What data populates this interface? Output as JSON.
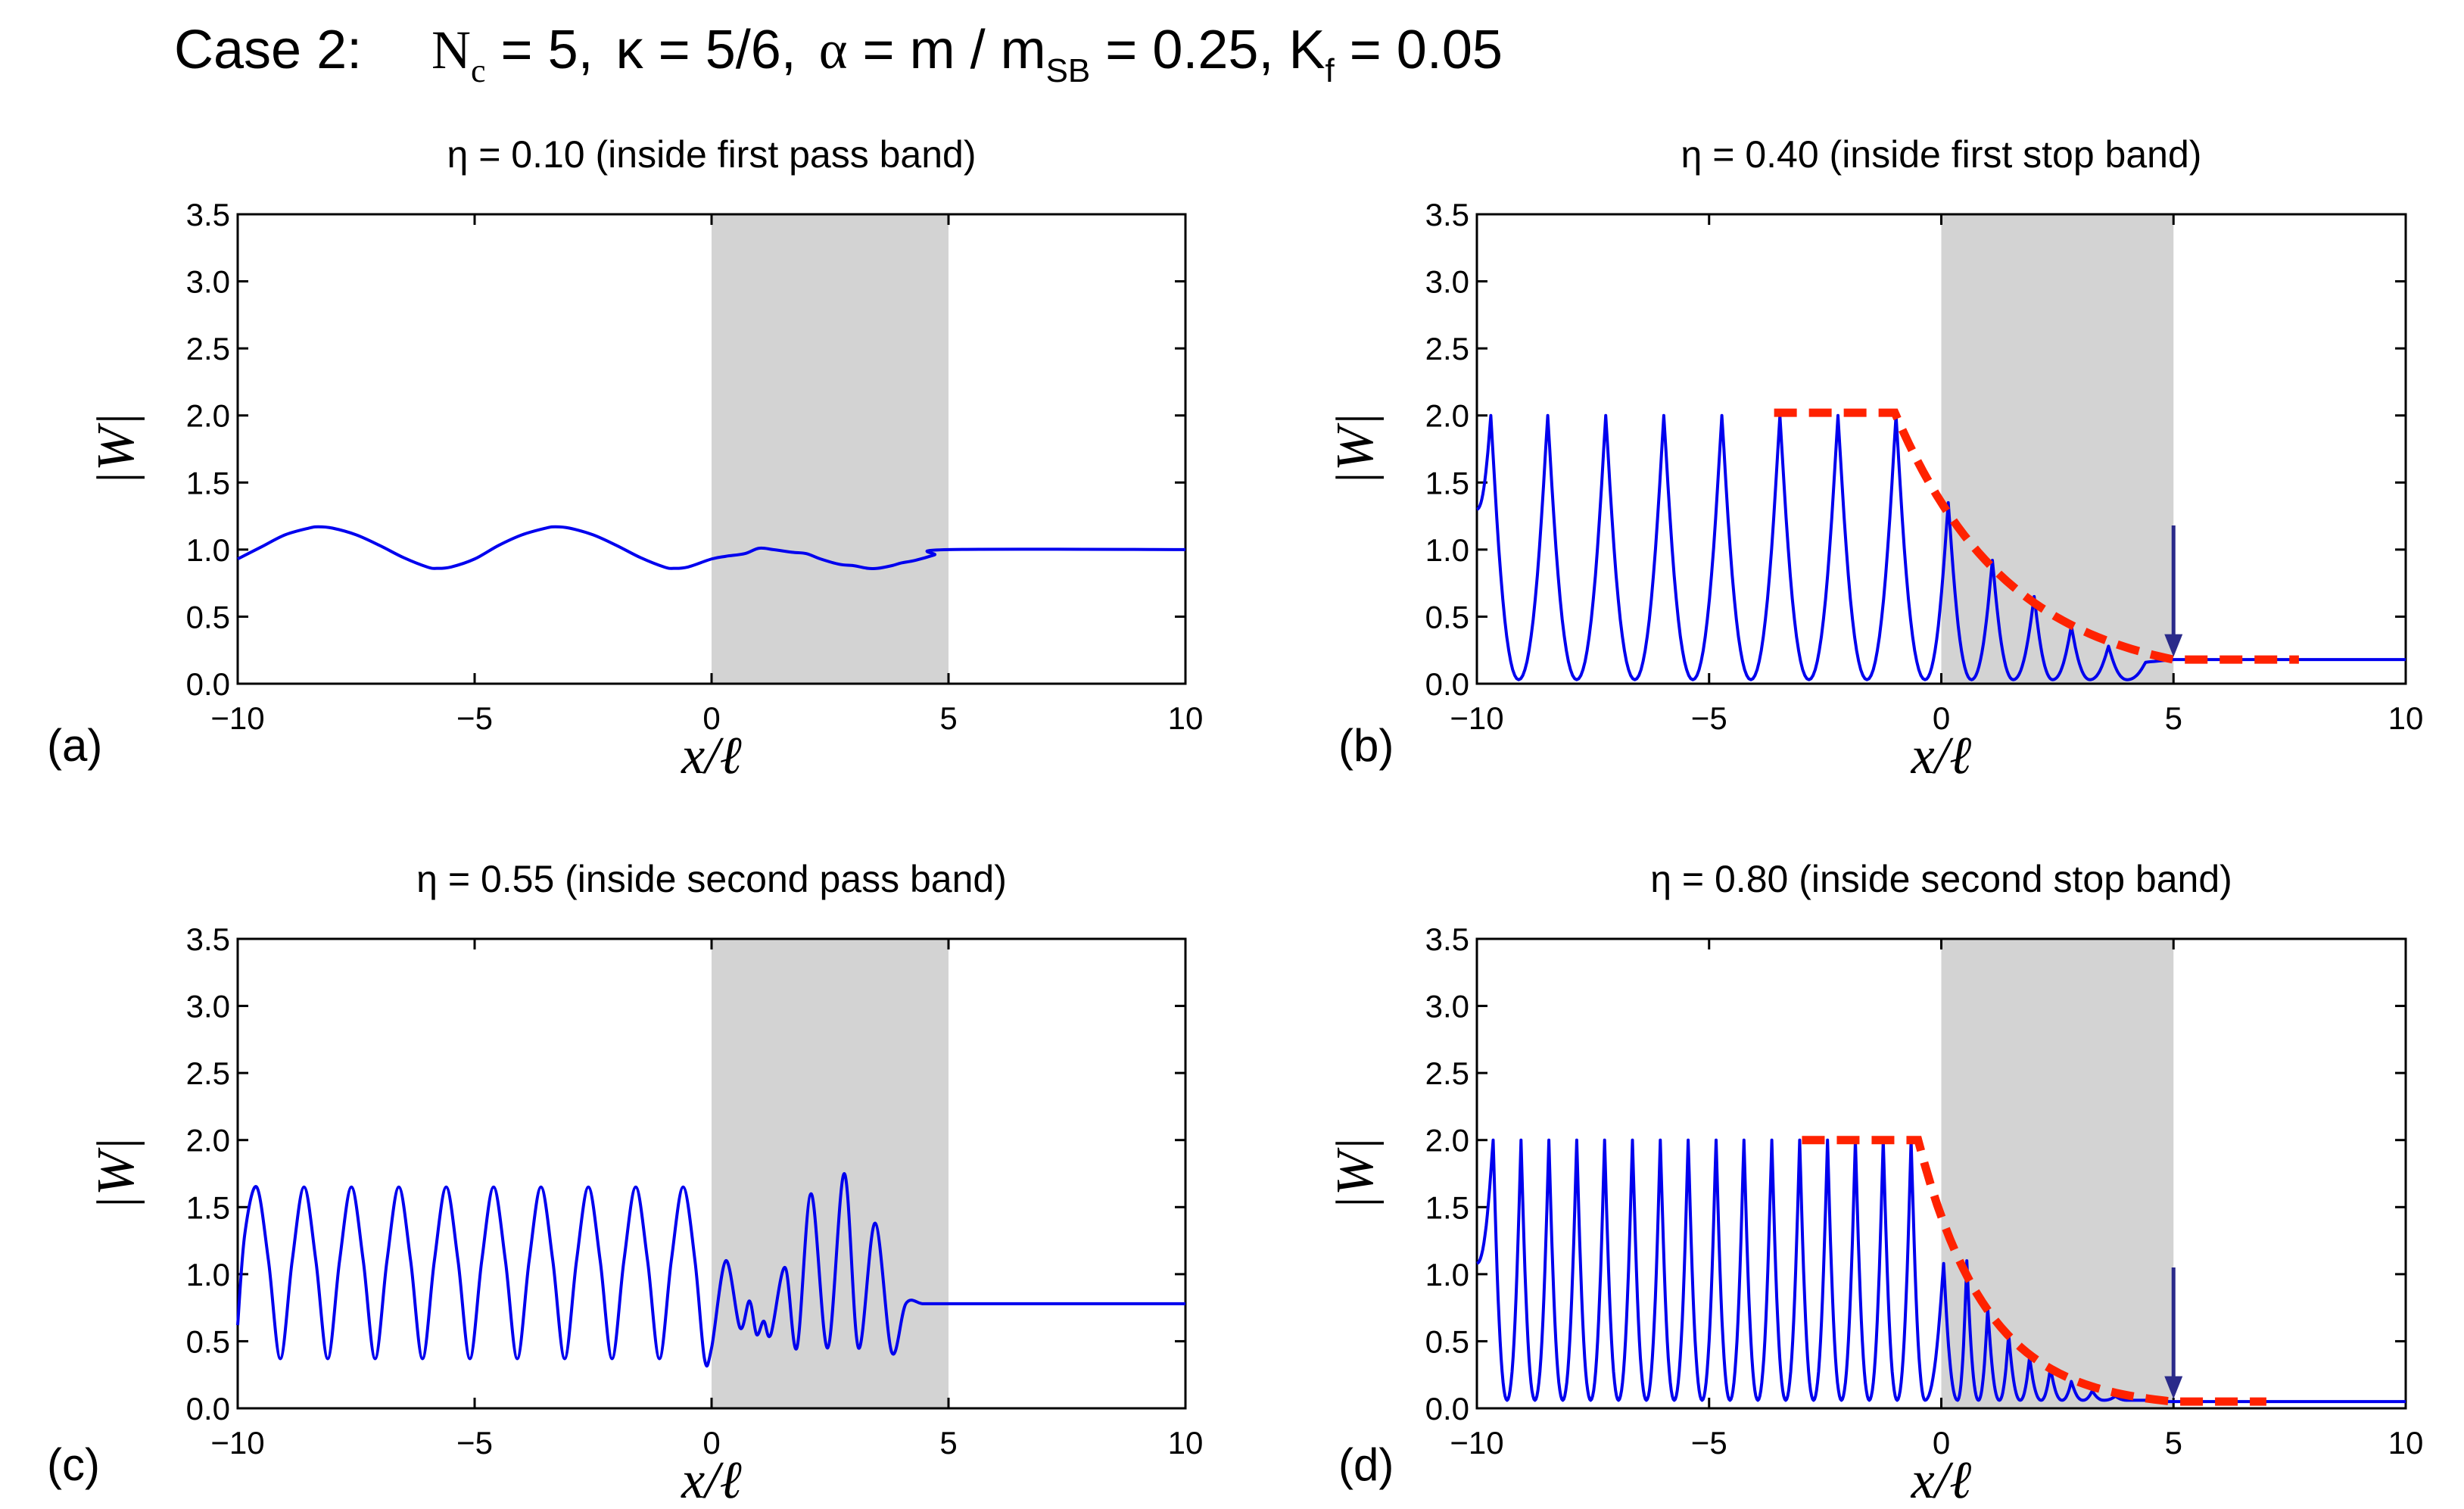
{
  "header": {
    "case_label": "Case 2:",
    "nc_sym": "N",
    "nc_sub": "c",
    "nc_val": " = 5,",
    "kappa_text": "κ = 5/6,",
    "alpha_sym": "α",
    "alpha_mid": " = m / m",
    "alpha_sub": "SB",
    "alpha_val": " = 0.25,",
    "k_sym": "K",
    "k_sub": "f",
    "k_val": " = 0.05"
  },
  "chart_data": [
    {
      "type": "line",
      "panel_label": "(a)",
      "title": "η = 0.10 (inside first pass band)",
      "xlabel": "x/ℓ",
      "ylabel": "|W|",
      "xlim": [
        -10,
        10
      ],
      "ylim": [
        0,
        3.5
      ],
      "xticks": [
        -10,
        -5,
        0,
        5,
        10
      ],
      "xtick_labels": [
        "−10",
        "−5",
        "0",
        "5",
        "10"
      ],
      "yticks": [
        0,
        0.5,
        1,
        1.5,
        2,
        2.5,
        3,
        3.5
      ],
      "ytick_labels": [
        "0.0",
        "0.5",
        "1.0",
        "1.5",
        "2.0",
        "2.5",
        "3.0",
        "3.5"
      ],
      "shaded_region": [
        0,
        5
      ],
      "series_color": "#0000ee",
      "envelope_color": "#ff2200",
      "series": [
        {
          "x": [
            -10,
            -9.5,
            -9,
            -8.5,
            -8.3,
            -8,
            -7.5,
            -7,
            -6.5,
            -6,
            -5.8,
            -5.5,
            -5,
            -4.5,
            -4,
            -3.5,
            -3.3,
            -3,
            -2.5,
            -2,
            -1.5,
            -1,
            -0.8,
            -0.5,
            0,
            0.3,
            0.7,
            1,
            1.3,
            1.7,
            2,
            2.3,
            2.7,
            3,
            3.3,
            3.5,
            3.8,
            4,
            4.3,
            4.7,
            5,
            10
          ],
          "y": [
            0.93,
            1.02,
            1.11,
            1.16,
            1.17,
            1.16,
            1.11,
            1.03,
            0.94,
            0.87,
            0.86,
            0.87,
            0.93,
            1.03,
            1.11,
            1.16,
            1.17,
            1.16,
            1.11,
            1.03,
            0.94,
            0.87,
            0.86,
            0.87,
            0.93,
            0.95,
            0.97,
            1.01,
            1.0,
            0.98,
            0.97,
            0.93,
            0.89,
            0.88,
            0.86,
            0.86,
            0.88,
            0.9,
            0.92,
            0.96,
            1.0,
            1.0
          ]
        }
      ]
    },
    {
      "type": "line",
      "panel_label": "(b)",
      "title": "η = 0.40 (inside first stop band)",
      "xlabel": "x/ℓ",
      "ylabel": "|W|",
      "xlim": [
        -10,
        10
      ],
      "ylim": [
        0,
        3.5
      ],
      "xticks": [
        -10,
        -5,
        0,
        5,
        10
      ],
      "xtick_labels": [
        "−10",
        "−5",
        "0",
        "5",
        "10"
      ],
      "yticks": [
        0,
        0.5,
        1,
        1.5,
        2,
        2.5,
        3,
        3.5
      ],
      "ytick_labels": [
        "0.0",
        "0.5",
        "1.0",
        "1.5",
        "2.0",
        "2.5",
        "3.0",
        "3.5"
      ],
      "shaded_region": [
        0,
        5
      ],
      "series_color": "#0000ee",
      "envelope_color": "#ff2200",
      "oscillation": {
        "x_start": -10,
        "x_end": 5,
        "minima": [
          -9.1,
          -7.85,
          -6.6,
          -5.35,
          -4.1,
          -2.85,
          -1.6,
          -0.35,
          0.65,
          1.55,
          2.4,
          3.2,
          4.0
        ],
        "maxima": [
          -9.7,
          -8.475,
          -7.225,
          -5.975,
          -4.725,
          -3.475,
          -2.225,
          -0.975,
          0.15,
          1.1,
          2.0,
          2.8,
          3.6,
          4.4
        ],
        "amplitudes": [
          2.0,
          2.0,
          2.0,
          2.0,
          2.0,
          2.0,
          2.0,
          2.0,
          1.35,
          0.92,
          0.65,
          0.43,
          0.28,
          0.16
        ],
        "start_value": 1.3,
        "end_value": 0.18,
        "floor": 0.03,
        "tail_value": 0.18
      },
      "envelope": {
        "x": [
          -3.6,
          -1.0,
          5.0,
          7.7
        ],
        "y": [
          2.02,
          2.02,
          0.18,
          0.18
        ],
        "kind": "exponential-decay"
      },
      "arrow": {
        "x": 5.0,
        "y_from": 1.18,
        "y_to": 0.2
      }
    },
    {
      "type": "line",
      "panel_label": "(c)",
      "title": "η = 0.55 (inside second pass band)",
      "xlabel": "x/ℓ",
      "ylabel": "|W|",
      "xlim": [
        -10,
        10
      ],
      "ylim": [
        0,
        3.5
      ],
      "xticks": [
        -10,
        -5,
        0,
        5,
        10
      ],
      "xtick_labels": [
        "−10",
        "−5",
        "0",
        "5",
        "10"
      ],
      "yticks": [
        0,
        0.5,
        1,
        1.5,
        2,
        2.5,
        3,
        3.5
      ],
      "ytick_labels": [
        "0.0",
        "0.5",
        "1.0",
        "1.5",
        "2.0",
        "2.5",
        "3.0",
        "3.5"
      ],
      "shaded_region": [
        0,
        5
      ],
      "series_color": "#0000ee",
      "envelope_color": "#ff2200",
      "series": [
        {
          "x": [
            -10,
            -9.85,
            -9.6,
            -9.35,
            -9.1,
            -8.85,
            -8.6,
            -8.35,
            -8.1,
            -7.85,
            -7.6,
            -7.35,
            -7.1,
            -6.85,
            -6.6,
            -6.35,
            -6.1,
            -5.85,
            -5.6,
            -5.35,
            -5.1,
            -4.85,
            -4.6,
            -4.35,
            -4.1,
            -3.85,
            -3.6,
            -3.35,
            -3.1,
            -2.85,
            -2.6,
            -2.35,
            -2.1,
            -1.85,
            -1.6,
            -1.35,
            -1.1,
            -0.85,
            -0.6,
            -0.35,
            -0.15,
            0,
            0.3,
            0.6,
            0.8,
            0.95,
            1.1,
            1.25,
            1.55,
            1.8,
            2.1,
            2.45,
            2.8,
            3.1,
            3.45,
            3.8,
            4.1,
            4.45,
            4.8,
            4.95,
            5,
            10
          ],
          "y": [
            0.62,
            1.3,
            1.65,
            1.1,
            0.37,
            1.1,
            1.65,
            1.1,
            0.37,
            1.1,
            1.65,
            1.1,
            0.37,
            1.1,
            1.65,
            1.1,
            0.37,
            1.1,
            1.65,
            1.1,
            0.37,
            1.1,
            1.65,
            1.1,
            0.37,
            1.1,
            1.65,
            1.1,
            0.37,
            1.1,
            1.65,
            1.1,
            0.37,
            1.1,
            1.65,
            1.1,
            0.37,
            1.1,
            1.65,
            1.1,
            0.37,
            0.45,
            1.1,
            0.6,
            0.8,
            0.55,
            0.65,
            0.55,
            1.05,
            0.45,
            1.6,
            0.45,
            1.75,
            0.45,
            1.38,
            0.42,
            0.78,
            0.78,
            0.78,
            0.78,
            0.78,
            0.78
          ]
        }
      ]
    },
    {
      "type": "line",
      "panel_label": "(d)",
      "title": "η = 0.80 (inside second stop band)",
      "xlabel": "x/ℓ",
      "ylabel": "|W|",
      "xlim": [
        -10,
        10
      ],
      "ylim": [
        0,
        3.5
      ],
      "xticks": [
        -10,
        -5,
        0,
        5,
        10
      ],
      "xtick_labels": [
        "−10",
        "−5",
        "0",
        "5",
        "10"
      ],
      "yticks": [
        0,
        0.5,
        1,
        1.5,
        2,
        2.5,
        3,
        3.5
      ],
      "ytick_labels": [
        "0.0",
        "0.5",
        "1.0",
        "1.5",
        "2.0",
        "2.5",
        "3.0",
        "3.5"
      ],
      "shaded_region": [
        0,
        5
      ],
      "series_color": "#0000ee",
      "envelope_color": "#ff2200",
      "oscillation": {
        "x_start": -10,
        "x_end": 5,
        "minima": [
          -9.35,
          -8.75,
          -8.15,
          -7.55,
          -6.95,
          -6.35,
          -5.75,
          -5.15,
          -4.55,
          -3.95,
          -3.35,
          -2.75,
          -2.15,
          -1.55,
          -0.95,
          -0.35,
          0.35,
          0.8,
          1.25,
          1.7,
          2.15,
          2.6,
          3.05,
          3.5,
          4.0,
          4.5
        ],
        "maxima": [
          -9.65,
          -9.05,
          -8.45,
          -7.85,
          -7.25,
          -6.65,
          -6.05,
          -5.45,
          -4.85,
          -4.25,
          -3.65,
          -3.05,
          -2.45,
          -1.85,
          -1.25,
          -0.65,
          0.05,
          0.55,
          1.0,
          1.45,
          1.9,
          2.35,
          2.8,
          3.25,
          3.75,
          4.25,
          4.75
        ],
        "amplitudes": [
          2.0,
          2.0,
          2.0,
          2.0,
          2.0,
          2.0,
          2.0,
          2.0,
          2.0,
          2.0,
          2.0,
          2.0,
          2.0,
          2.0,
          2.0,
          2.0,
          1.08,
          1.1,
          0.75,
          0.55,
          0.38,
          0.3,
          0.2,
          0.13,
          0.09,
          0.06,
          0.05
        ],
        "start_value": 1.08,
        "end_value": 0.05,
        "floor": 0.06,
        "tail_value": 0.05
      },
      "envelope": {
        "x": [
          -3.0,
          -0.5,
          5.0,
          7.0
        ],
        "y": [
          2.0,
          2.0,
          0.05,
          0.05
        ],
        "kind": "exponential-decay"
      },
      "arrow": {
        "x": 5.0,
        "y_from": 1.05,
        "y_to": 0.07
      }
    }
  ]
}
